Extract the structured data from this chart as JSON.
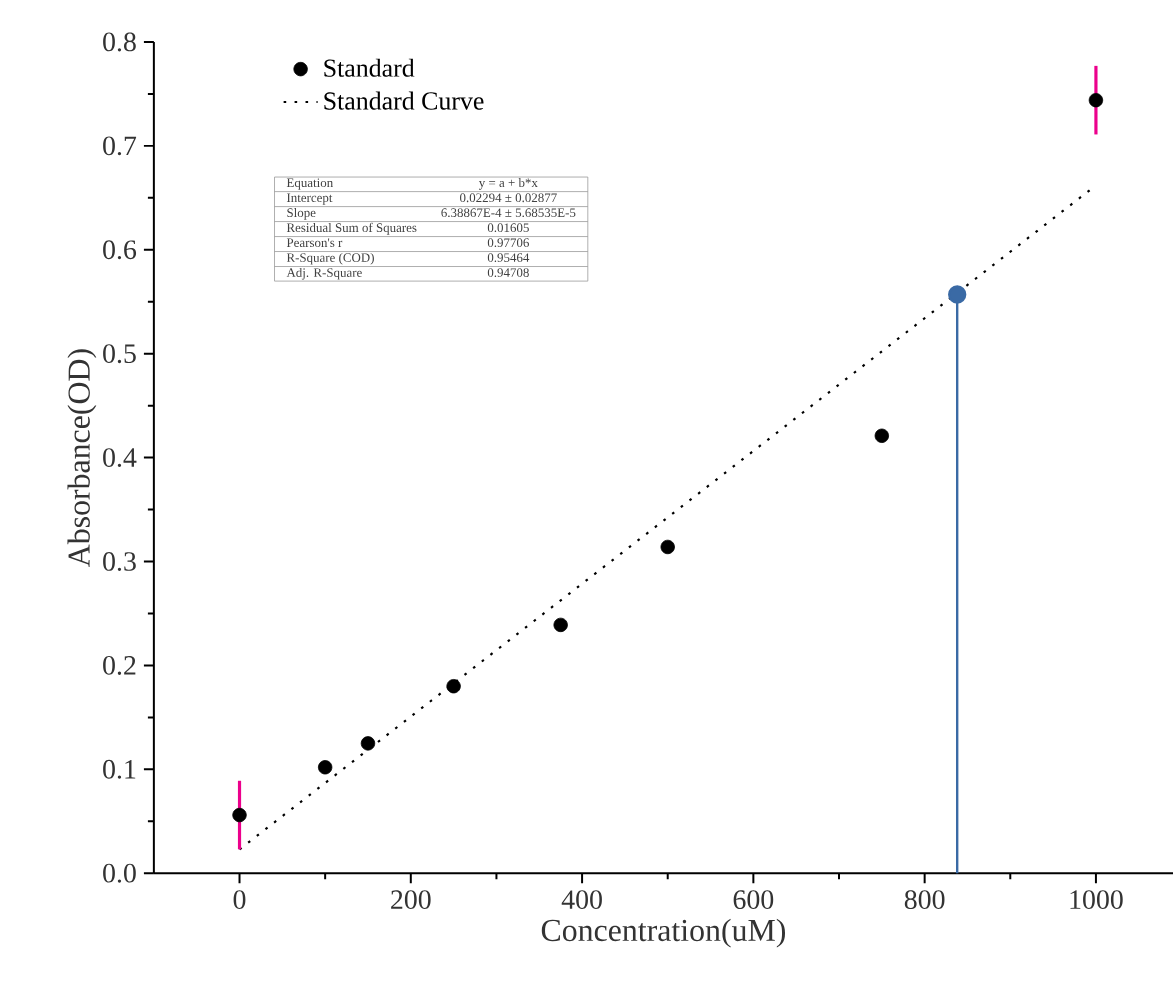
{
  "chart_data": {
    "type": "scatter",
    "xlabel": "Concentration(uM)",
    "ylabel": "Absorbance(OD)",
    "xlim": [
      -100,
      1090
    ],
    "xticks": [
      0,
      200,
      400,
      600,
      800,
      1000
    ],
    "ylim": [
      0,
      0.8
    ],
    "yticks": [
      {
        "value": 0,
        "label": "0.0"
      },
      0.1,
      0.2,
      0.3,
      0.4,
      0.5,
      0.6,
      0.7,
      0.8
    ],
    "grid": false,
    "legend": "top left",
    "series": [
      {
        "name": "Standard",
        "marker": "circle",
        "color": "#000000",
        "x": [
          0,
          100,
          150,
          250,
          375,
          500,
          750,
          1000
        ],
        "values": [
          0.056,
          0.102,
          0.125,
          0.18,
          0.239,
          0.314,
          0.421,
          0.744
        ],
        "errors": [
          0.033,
          null,
          null,
          null,
          null,
          null,
          null,
          0.033
        ]
      },
      {
        "name": "Standard Curve",
        "type": "line",
        "line_style": "dotted",
        "marker": "none",
        "color": "#000000",
        "x": [
          0,
          1000
        ],
        "values": [
          0.023,
          0.662
        ]
      },
      {
        "type": "lollipop",
        "marker": "circle",
        "color": "#3a6aa5",
        "x": [
          838
        ],
        "values": [
          0.557
        ]
      }
    ],
    "annotations": [
      "Equation",
      "y = a + b*x",
      "Intercept",
      "0.02294 ± 0.02877",
      "Slope",
      "6.38867E-4 ± 5.68535E-5",
      "Residual Sum of Squares",
      "0.01605",
      "Pearson's r",
      "0.97706",
      "R-Square (COD)",
      "0.95464",
      "Adj. R-Square",
      "0.94708"
    ]
  }
}
